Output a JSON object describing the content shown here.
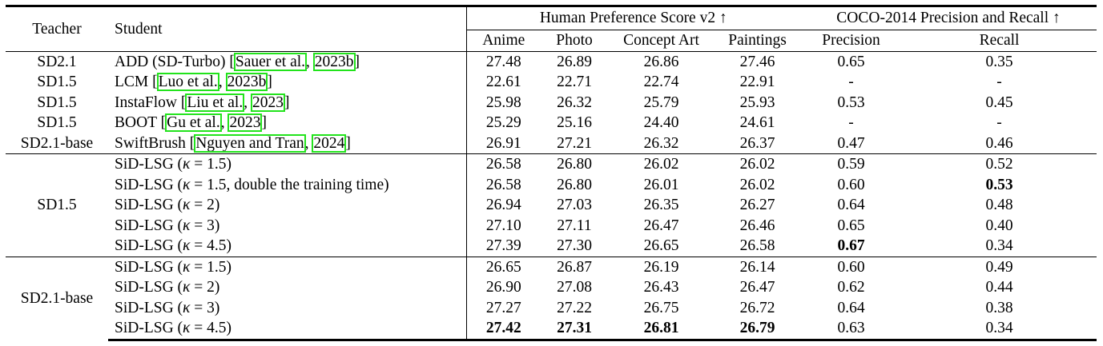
{
  "header": {
    "teacher": "Teacher",
    "student": "Student",
    "group_hps": "Human Preference Score v2 ↑",
    "group_coco": "COCO-2014 Precision and Recall ↑",
    "cols": [
      "Anime",
      "Photo",
      "Concept Art",
      "Paintings",
      "Precision",
      "Recall"
    ]
  },
  "baselines": [
    {
      "teacher": "SD2.1",
      "method": "ADD (SD-Turbo) [",
      "cite_a": "Sauer et al.",
      "cite_b": "2023b",
      "close": "]",
      "vals": [
        "27.48",
        "26.89",
        "26.86",
        "27.46",
        "0.65",
        "0.35"
      ]
    },
    {
      "teacher": "SD1.5",
      "method": "LCM [",
      "cite_a": "Luo et al.",
      "cite_b": "2023b",
      "close": "]",
      "vals": [
        "22.61",
        "22.71",
        "22.74",
        "22.91",
        "-",
        "-"
      ]
    },
    {
      "teacher": "SD1.5",
      "method": "InstaFlow [",
      "cite_a": "Liu et al.",
      "cite_b": "2023",
      "close": "]",
      "vals": [
        "25.98",
        "26.32",
        "25.79",
        "25.93",
        "0.53",
        "0.45"
      ]
    },
    {
      "teacher": "SD1.5",
      "method": "BOOT [",
      "cite_a": "Gu et al.",
      "cite_b": "2023",
      "close": "]",
      "vals": [
        "25.29",
        "25.16",
        "24.40",
        "24.61",
        "-",
        "-"
      ]
    },
    {
      "teacher": "SD2.1-base",
      "method": "SwiftBrush [",
      "cite_a": "Nguyen and Tran",
      "cite_b": "2024",
      "close": "]",
      "vals": [
        "26.91",
        "27.21",
        "26.32",
        "26.37",
        "0.47",
        "0.46"
      ]
    }
  ],
  "group1": {
    "teacher": "SD1.5",
    "rows": [
      {
        "prefix": "SiD-LSG (",
        "kappa": "κ",
        "suffix": " = 1.5)",
        "vals": [
          "26.58",
          "26.80",
          "26.02",
          "26.02",
          "0.59",
          "0.52"
        ]
      },
      {
        "prefix": "SiD-LSG (",
        "kappa": "κ",
        "suffix": " = 1.5, double the training time)",
        "vals": [
          "26.58",
          "26.80",
          "26.01",
          "26.02",
          "0.60",
          "0.53"
        ]
      },
      {
        "prefix": "SiD-LSG (",
        "kappa": "κ",
        "suffix": " = 2)",
        "vals": [
          "26.94",
          "27.03",
          "26.35",
          "26.27",
          "0.64",
          "0.48"
        ]
      },
      {
        "prefix": "SiD-LSG (",
        "kappa": "κ",
        "suffix": " = 3)",
        "vals": [
          "27.10",
          "27.11",
          "26.47",
          "26.46",
          "0.65",
          "0.40"
        ]
      },
      {
        "prefix": "SiD-LSG (",
        "kappa": "κ",
        "suffix": " = 4.5)",
        "vals": [
          "27.39",
          "27.30",
          "26.65",
          "26.58",
          "0.67",
          "0.34"
        ]
      }
    ]
  },
  "group2": {
    "teacher": "SD2.1-base",
    "rows": [
      {
        "prefix": "SiD-LSG (",
        "kappa": "κ",
        "suffix": " = 1.5)",
        "vals": [
          "26.65",
          "26.87",
          "26.19",
          "26.14",
          "0.60",
          "0.49"
        ]
      },
      {
        "prefix": "SiD-LSG (",
        "kappa": "κ",
        "suffix": " = 2)",
        "vals": [
          "26.90",
          "27.08",
          "26.43",
          "26.47",
          "0.62",
          "0.44"
        ]
      },
      {
        "prefix": "SiD-LSG (",
        "kappa": "κ",
        "suffix": " = 3)",
        "vals": [
          "27.27",
          "27.22",
          "26.75",
          "26.72",
          "0.64",
          "0.38"
        ]
      },
      {
        "prefix": "SiD-LSG (",
        "kappa": "κ",
        "suffix": " = 4.5)",
        "vals": [
          "27.42",
          "27.31",
          "26.81",
          "26.79",
          "0.63",
          "0.34"
        ]
      }
    ]
  },
  "colors": {
    "citation_box": "#22e31c",
    "text": "#000000"
  }
}
